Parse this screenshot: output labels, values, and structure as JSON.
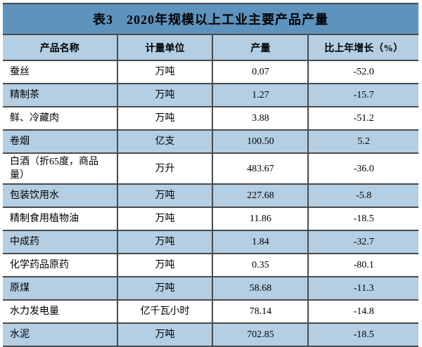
{
  "chart_data": {
    "type": "table",
    "title": "表3　2020年规模以上工业主要产品产量",
    "columns": [
      "产品名称",
      "计量单位",
      "产量",
      "比上年增长（%）"
    ],
    "rows": [
      {
        "name": "蚕丝",
        "unit": "万吨",
        "output": "0.07",
        "growth": "-52.0"
      },
      {
        "name": "精制茶",
        "unit": "万吨",
        "output": "1.27",
        "growth": "-15.7"
      },
      {
        "name": "鲜、冷藏肉",
        "unit": "万吨",
        "output": "3.88",
        "growth": "-51.2"
      },
      {
        "name": "卷烟",
        "unit": "亿支",
        "output": "100.50",
        "growth": "5.2"
      },
      {
        "name": "白酒（折65度，商品量）",
        "unit": "万升",
        "output": "483.67",
        "growth": "-36.0"
      },
      {
        "name": "包装饮用水",
        "unit": "万吨",
        "output": "227.68",
        "growth": "-5.8"
      },
      {
        "name": "精制食用植物油",
        "unit": "万吨",
        "output": "11.86",
        "growth": "-18.5"
      },
      {
        "name": "中成药",
        "unit": "万吨",
        "output": "1.84",
        "growth": "-32.7"
      },
      {
        "name": "化学药品原药",
        "unit": "万吨",
        "output": "0.35",
        "growth": "-80.1"
      },
      {
        "name": "原煤",
        "unit": "万吨",
        "output": "58.68",
        "growth": "-11.3"
      },
      {
        "name": "水力发电量",
        "unit": "亿千瓦小时",
        "output": "78.14",
        "growth": "-14.8"
      },
      {
        "name": "水泥",
        "unit": "万吨",
        "output": "702.85",
        "growth": "-18.5"
      }
    ],
    "colors": {
      "title_bg": "#5e93be",
      "header_bg": "#b4cfe4",
      "stripe_bg": "#b4cfe4",
      "row_bg": "#ffffff",
      "border": "#4a4a4a",
      "text": "#000000"
    }
  }
}
